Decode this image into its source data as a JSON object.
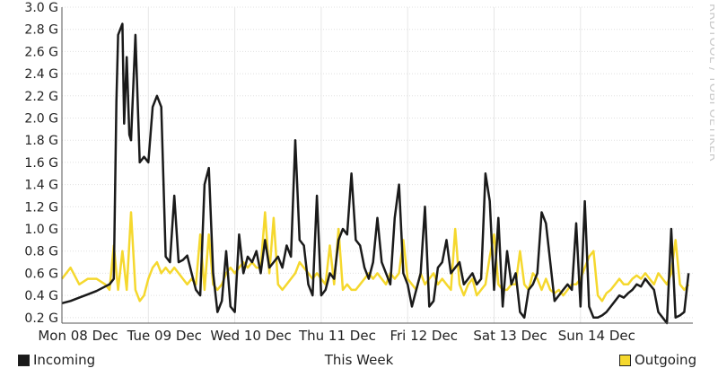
{
  "chart_data": {
    "type": "line",
    "ylim": [
      0.15,
      3.0
    ],
    "y_tick_values": [
      0.2,
      0.4,
      0.6,
      0.8,
      1.0,
      1.2,
      1.4,
      1.6,
      1.8,
      2.0,
      2.2,
      2.4,
      2.6,
      2.8,
      3.0
    ],
    "y_tick_labels": [
      "0.2 G",
      "0.4 G",
      "0.6 G",
      "0.8 G",
      "1.0 G",
      "1.2 G",
      "1.4 G",
      "1.6 G",
      "1.8 G",
      "2.0 G",
      "2.2 G",
      "2.4 G",
      "2.6 G",
      "2.8 G",
      "3.0 G"
    ],
    "x_tick_labels": [
      "Mon 08 Dec",
      "Tue 09 Dec",
      "Wed 10 Dec",
      "Thu 11 Dec",
      "Fri 12 Dec",
      "Sat 13 Dec",
      "Sun 14 Dec"
    ],
    "xlim_days": [
      0,
      7.3
    ],
    "xlabel": "This Week",
    "grid": true,
    "series": [
      {
        "name": "Incoming",
        "color": "#1a1a1a",
        "x_days": [
          0,
          0.1,
          0.2,
          0.3,
          0.4,
          0.5,
          0.55,
          0.6,
          0.63,
          0.65,
          0.7,
          0.72,
          0.75,
          0.78,
          0.8,
          0.85,
          0.9,
          0.95,
          1.0,
          1.05,
          1.1,
          1.15,
          1.2,
          1.25,
          1.3,
          1.35,
          1.4,
          1.45,
          1.5,
          1.55,
          1.6,
          1.65,
          1.7,
          1.75,
          1.8,
          1.85,
          1.9,
          1.95,
          2.0,
          2.05,
          2.1,
          2.15,
          2.2,
          2.25,
          2.3,
          2.35,
          2.4,
          2.45,
          2.5,
          2.55,
          2.6,
          2.65,
          2.7,
          2.75,
          2.8,
          2.85,
          2.9,
          2.95,
          3.0,
          3.05,
          3.1,
          3.15,
          3.2,
          3.25,
          3.3,
          3.35,
          3.4,
          3.45,
          3.5,
          3.55,
          3.6,
          3.65,
          3.7,
          3.75,
          3.8,
          3.85,
          3.9,
          3.95,
          4.0,
          4.05,
          4.1,
          4.15,
          4.2,
          4.25,
          4.3,
          4.35,
          4.4,
          4.45,
          4.5,
          4.55,
          4.6,
          4.65,
          4.7,
          4.75,
          4.8,
          4.85,
          4.9,
          4.95,
          5.0,
          5.05,
          5.1,
          5.15,
          5.2,
          5.25,
          5.3,
          5.35,
          5.4,
          5.45,
          5.5,
          5.55,
          5.6,
          5.65,
          5.7,
          5.75,
          5.8,
          5.85,
          5.9,
          5.95,
          6.0,
          6.05,
          6.1,
          6.15,
          6.2,
          6.25,
          6.3,
          6.35,
          6.4,
          6.45,
          6.5,
          6.55,
          6.6,
          6.65,
          6.7,
          6.75,
          6.8,
          6.85,
          6.9,
          6.95,
          7.0,
          7.05,
          7.1,
          7.15,
          7.2,
          7.25
        ],
        "values": [
          0.33,
          0.35,
          0.38,
          0.41,
          0.44,
          0.48,
          0.5,
          0.55,
          2.15,
          2.75,
          2.85,
          1.95,
          2.55,
          1.85,
          1.8,
          2.75,
          1.6,
          1.65,
          1.6,
          2.1,
          2.2,
          2.1,
          0.75,
          0.7,
          1.3,
          0.7,
          0.72,
          0.76,
          0.6,
          0.45,
          0.4,
          1.4,
          1.55,
          0.6,
          0.25,
          0.35,
          0.8,
          0.3,
          0.25,
          0.95,
          0.6,
          0.75,
          0.7,
          0.8,
          0.6,
          0.9,
          0.65,
          0.7,
          0.75,
          0.65,
          0.85,
          0.75,
          1.8,
          0.9,
          0.85,
          0.5,
          0.4,
          1.3,
          0.4,
          0.45,
          0.6,
          0.55,
          0.9,
          1.0,
          0.95,
          1.5,
          0.9,
          0.85,
          0.65,
          0.55,
          0.7,
          1.1,
          0.7,
          0.6,
          0.5,
          1.1,
          1.4,
          0.6,
          0.5,
          0.3,
          0.45,
          0.6,
          1.2,
          0.3,
          0.35,
          0.65,
          0.7,
          0.9,
          0.6,
          0.65,
          0.7,
          0.5,
          0.55,
          0.6,
          0.5,
          0.55,
          1.5,
          1.25,
          0.45,
          1.1,
          0.3,
          0.8,
          0.5,
          0.6,
          0.25,
          0.2,
          0.45,
          0.5,
          0.6,
          1.15,
          1.05,
          0.7,
          0.35,
          0.4,
          0.45,
          0.5,
          0.45,
          1.05,
          0.3,
          1.25,
          0.3,
          0.2,
          0.2,
          0.22,
          0.25,
          0.3,
          0.35,
          0.4,
          0.38,
          0.42,
          0.45,
          0.5,
          0.48,
          0.55,
          0.5,
          0.45,
          0.25,
          0.2,
          0.15,
          1.0,
          0.2,
          0.22,
          0.25,
          0.6
        ]
      },
      {
        "name": "Outgoing",
        "color": "#f5d82e",
        "x_days": [
          0,
          0.1,
          0.2,
          0.3,
          0.4,
          0.5,
          0.55,
          0.6,
          0.65,
          0.7,
          0.75,
          0.8,
          0.85,
          0.9,
          0.95,
          1.0,
          1.05,
          1.1,
          1.15,
          1.2,
          1.25,
          1.3,
          1.35,
          1.4,
          1.45,
          1.5,
          1.55,
          1.6,
          1.65,
          1.7,
          1.75,
          1.8,
          1.85,
          1.9,
          1.95,
          2.0,
          2.05,
          2.1,
          2.15,
          2.2,
          2.25,
          2.3,
          2.35,
          2.4,
          2.45,
          2.5,
          2.55,
          2.6,
          2.65,
          2.7,
          2.75,
          2.8,
          2.85,
          2.9,
          2.95,
          3.0,
          3.05,
          3.1,
          3.15,
          3.2,
          3.25,
          3.3,
          3.35,
          3.4,
          3.45,
          3.5,
          3.55,
          3.6,
          3.65,
          3.7,
          3.75,
          3.8,
          3.85,
          3.9,
          3.95,
          4.0,
          4.05,
          4.1,
          4.15,
          4.2,
          4.25,
          4.3,
          4.35,
          4.4,
          4.45,
          4.5,
          4.55,
          4.6,
          4.65,
          4.7,
          4.75,
          4.8,
          4.85,
          4.9,
          4.95,
          5.0,
          5.05,
          5.1,
          5.15,
          5.2,
          5.25,
          5.3,
          5.35,
          5.4,
          5.45,
          5.5,
          5.55,
          5.6,
          5.65,
          5.7,
          5.75,
          5.8,
          5.85,
          5.9,
          5.95,
          6.0,
          6.05,
          6.1,
          6.15,
          6.2,
          6.25,
          6.3,
          6.35,
          6.4,
          6.45,
          6.5,
          6.55,
          6.6,
          6.65,
          6.7,
          6.75,
          6.8,
          6.85,
          6.9,
          6.95,
          7.0,
          7.05,
          7.1,
          7.15,
          7.2,
          7.25
        ],
        "values": [
          0.55,
          0.65,
          0.5,
          0.55,
          0.55,
          0.5,
          0.45,
          0.85,
          0.45,
          0.8,
          0.45,
          1.15,
          0.45,
          0.35,
          0.4,
          0.55,
          0.65,
          0.7,
          0.6,
          0.65,
          0.6,
          0.65,
          0.6,
          0.55,
          0.5,
          0.55,
          0.5,
          0.95,
          0.45,
          0.95,
          0.5,
          0.45,
          0.5,
          0.6,
          0.65,
          0.6,
          0.65,
          0.7,
          0.65,
          0.7,
          0.65,
          0.65,
          1.15,
          0.6,
          1.1,
          0.5,
          0.45,
          0.5,
          0.55,
          0.6,
          0.7,
          0.65,
          0.6,
          0.55,
          0.6,
          0.55,
          0.5,
          0.85,
          0.5,
          1.0,
          0.45,
          0.5,
          0.45,
          0.45,
          0.5,
          0.55,
          0.6,
          0.55,
          0.6,
          0.55,
          0.5,
          0.6,
          0.55,
          0.6,
          0.9,
          0.55,
          0.5,
          0.45,
          0.6,
          0.5,
          0.55,
          0.6,
          0.5,
          0.55,
          0.5,
          0.45,
          1.0,
          0.5,
          0.4,
          0.5,
          0.55,
          0.4,
          0.45,
          0.5,
          0.75,
          0.95,
          0.5,
          0.45,
          0.45,
          0.5,
          0.5,
          0.8,
          0.5,
          0.45,
          0.6,
          0.55,
          0.45,
          0.55,
          0.45,
          0.42,
          0.45,
          0.4,
          0.45,
          0.5,
          0.5,
          0.55,
          0.65,
          0.75,
          0.8,
          0.4,
          0.35,
          0.42,
          0.45,
          0.5,
          0.55,
          0.5,
          0.5,
          0.55,
          0.58,
          0.55,
          0.6,
          0.55,
          0.5,
          0.6,
          0.55,
          0.5,
          0.6,
          0.9,
          0.5,
          0.45,
          0.5
        ]
      }
    ]
  },
  "legend": {
    "incoming_label": "Incoming",
    "outgoing_label": "Outgoing",
    "incoming_color": "#1a1a1a",
    "outgoing_color": "#f5d82e"
  },
  "x_axis_title": "This Week",
  "watermark": "RRDTOOL / TOBI OETIKER"
}
